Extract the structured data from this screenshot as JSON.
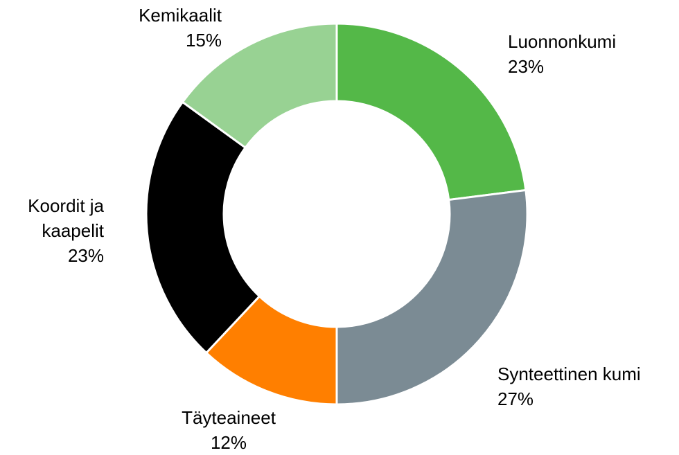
{
  "chart_data": {
    "type": "donut",
    "categories": [
      "Luonnonkumi",
      "Synteettinen kumi",
      "Täyteaineet",
      "Koordit ja kaapelit",
      "Kemikaalit"
    ],
    "values": [
      23,
      27,
      12,
      23,
      15
    ],
    "value_labels": [
      "23%",
      "27%",
      "12%",
      "23%",
      "15%"
    ],
    "colors": [
      "#54b848",
      "#7b8b94",
      "#ff7f00",
      "#000000",
      "#98d293"
    ]
  }
}
